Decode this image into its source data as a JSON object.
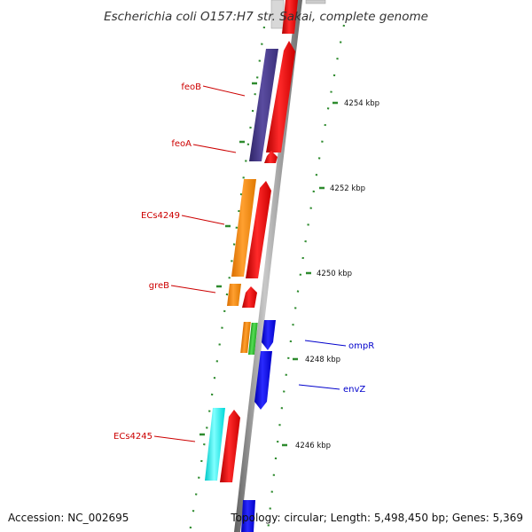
{
  "title": "Escherichia coli O157:H7 str. Sakai, complete genome",
  "footer": {
    "accession": "Accession: NC_002695",
    "topology": "Topology: circular; Length: 5,498,450 bp; Genes: 5,369"
  },
  "gene_labels": {
    "feoB": "feoB",
    "feoA": "feoA",
    "ecs4249": "ECs4249",
    "greB": "greB",
    "ompR": "ompR",
    "envZ": "envZ",
    "ecs4245": "ECs4245"
  },
  "kbp_labels": [
    "4254 kbp",
    "4252 kbp",
    "4250 kbp",
    "4248 kbp",
    "4246 kbp"
  ],
  "colors": {
    "label_red": "#cc0000",
    "label_blue": "#0000cc",
    "cds_red": "#ff0000",
    "cds_purple": "#4a3d8c",
    "cds_orange": "#ff8c00",
    "cds_blue": "#0000ff",
    "cds_cyan": "#00ffff",
    "cds_green": "#33cc33",
    "backbone": "#888888",
    "tick_green": "#2e8b2e"
  }
}
